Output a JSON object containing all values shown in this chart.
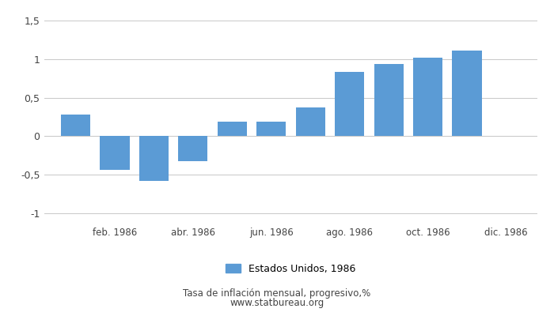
{
  "values": [
    0.28,
    -0.44,
    -0.58,
    -0.32,
    0.19,
    0.19,
    0.37,
    0.83,
    0.94,
    1.02,
    1.11
  ],
  "n_bars": 11,
  "bar_color": "#5b9bd5",
  "ylim": [
    -1.1,
    1.6
  ],
  "yticks": [
    -1.0,
    -0.5,
    0.0,
    0.5,
    1.0,
    1.5
  ],
  "ytick_labels": [
    "-1",
    "-0,5",
    "0",
    "0,5",
    "1",
    "1,5"
  ],
  "x_tick_positions": [
    1,
    3,
    5,
    7,
    9,
    11
  ],
  "x_tick_labels": [
    "feb. 1986",
    "abr. 1986",
    "jun. 1986",
    "ago. 1986",
    "oct. 1986",
    "dic. 1986"
  ],
  "legend_label": "Estados Unidos, 1986",
  "subtitle": "Tasa de inflación mensual, progresivo,%",
  "source": "www.statbureau.org",
  "background_color": "#ffffff",
  "grid_color": "#c8c8c8",
  "text_color": "#444444"
}
